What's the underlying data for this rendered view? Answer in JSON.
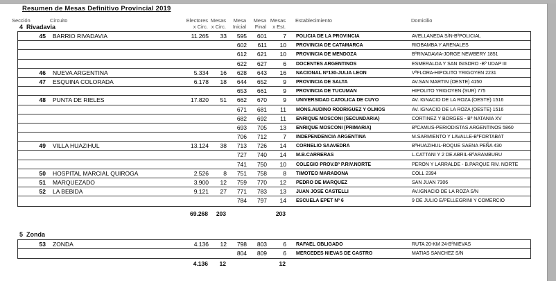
{
  "report": {
    "title": "Resumen de Mesas Definitivo Provincial 2019"
  },
  "columns": {
    "seccion": "Sección",
    "circuito": "Circuito",
    "electores_l1": "Electores",
    "electores_l2": "x Circ.",
    "mesas_l1": "Mesas",
    "mesas_l2": "x Circ.",
    "mesa_inicial_l1": "Mesa",
    "mesa_inicial_l2": "Inicial",
    "mesa_final_l1": "Mesa",
    "mesa_final_l2": "Final",
    "mesas_est_l1": "Mesas",
    "mesas_est_l2": "x Est.",
    "establecimiento": "Establecimiento",
    "domicilio": "Domicilio"
  },
  "colors": {
    "page_bg": "#ffffff",
    "frame_gray": "#b5b5b5",
    "header_text": "#454545",
    "row_border": "#333333",
    "text": "#000000"
  },
  "sections": [
    {
      "number": "4",
      "name": "Rivadavia",
      "rows": [
        {
          "nro": "45",
          "circuito": "BARRIO RIVADAVIA",
          "electores": "11.265",
          "mesas": "33",
          "ini": "595",
          "fin": "601",
          "est": "7",
          "estab": "POLICIA DE LA PROVINCIA",
          "dom": "AVELLANEDA S/N-BºPOLICIAL"
        },
        {
          "nro": "",
          "circuito": "",
          "electores": "",
          "mesas": "",
          "ini": "602",
          "fin": "611",
          "est": "10",
          "estab": "PROVINCIA DE CATAMARCA",
          "dom": "RIOBAMBA Y ARENALES"
        },
        {
          "nro": "",
          "circuito": "",
          "electores": "",
          "mesas": "",
          "ini": "612",
          "fin": "621",
          "est": "10",
          "estab": "PROVINCIA DE MENDOZA",
          "dom": "BºRIVADAVIA-JORGE NEWBERY 1851"
        },
        {
          "nro": "",
          "circuito": "",
          "electores": "",
          "mesas": "",
          "ini": "622",
          "fin": "627",
          "est": "6",
          "estab": "DOCENTES ARGENTINOS",
          "dom": "ESMERALDA Y SAN ISISDRO -Bº UDAP III"
        },
        {
          "nro": "46",
          "circuito": "NUEVA ARGENTINA",
          "electores": "5.334",
          "mesas": "16",
          "ini": "628",
          "fin": "643",
          "est": "16",
          "estab": "NACIONAL Nº130-JULIA LEON",
          "dom": "VºFLORA-HIPOLITO YRIGOYEN 2231"
        },
        {
          "nro": "47",
          "circuito": "ESQUINA COLORADA",
          "electores": "6.178",
          "mesas": "18",
          "ini": "644",
          "fin": "652",
          "est": "9",
          "estab": "PROVINCIA DE SALTA",
          "dom": "AV.SAN MARTIN (OESTE) 4150"
        },
        {
          "nro": "",
          "circuito": "",
          "electores": "",
          "mesas": "",
          "ini": "653",
          "fin": "661",
          "est": "9",
          "estab": "PROVINCIA DE TUCUMAN",
          "dom": "HIPOLITO YRIGOYEN (SUR) 775"
        },
        {
          "nro": "48",
          "circuito": "PUNTA DE RIELES",
          "electores": "17.820",
          "mesas": "51",
          "ini": "662",
          "fin": "670",
          "est": "9",
          "estab": "UNIVERSIDAD CATOLICA DE CUYO",
          "dom": "AV. IGNACIO DE LA ROZA (OESTE) 1516"
        },
        {
          "nro": "",
          "circuito": "",
          "electores": "",
          "mesas": "",
          "ini": "671",
          "fin": "681",
          "est": "11",
          "estab": "MONS.AUDINO RODRIGUEZ Y OLMOS",
          "dom": "AV. IGNACIO DE LA ROZA (OESTE) 1516"
        },
        {
          "nro": "",
          "circuito": "",
          "electores": "",
          "mesas": "",
          "ini": "682",
          "fin": "692",
          "est": "11",
          "estab": "ENRIQUE MOSCONI (SECUNDARIA)",
          "dom": "CORTINEZ Y BORGES - Bº NATANIA XV"
        },
        {
          "nro": "",
          "circuito": "",
          "electores": "",
          "mesas": "",
          "ini": "693",
          "fin": "705",
          "est": "13",
          "estab": "ENRIQUE MOSCONI (PRIMARIA)",
          "dom": "BºCAMUS-PERIODISTAS ARGENTINOS 5860"
        },
        {
          "nro": "",
          "circuito": "",
          "electores": "",
          "mesas": "",
          "ini": "706",
          "fin": "712",
          "est": "7",
          "estab": "INDEPENDENCIA ARGENTINA",
          "dom": "M.SARMIENTO Y LAVALLE-BºFORTABAT"
        },
        {
          "nro": "49",
          "circuito": "VILLA HUAZIHUL",
          "electores": "13.124",
          "mesas": "38",
          "ini": "713",
          "fin": "726",
          "est": "14",
          "estab": "CORNELIO SAAVEDRA",
          "dom": "BºHUAZIHUL-ROQUE SAENA PEÑA 430"
        },
        {
          "nro": "",
          "circuito": "",
          "electores": "",
          "mesas": "",
          "ini": "727",
          "fin": "740",
          "est": "14",
          "estab": "M.B.CARRERAS",
          "dom": "L.CATTANI Y 2 DE ABRIL-BºARAMBURU"
        },
        {
          "nro": "",
          "circuito": "",
          "electores": "",
          "mesas": "",
          "ini": "741",
          "fin": "750",
          "est": "10",
          "estab": "COLEGIO PROV.Bº P.RIV.NORTE",
          "dom": "PERON Y LARRALDE - B.PARQUE RIV. NORTE"
        },
        {
          "nro": "50",
          "circuito": "HOSPITAL MARCIAL QUIROGA",
          "electores": "2.526",
          "mesas": "8",
          "ini": "751",
          "fin": "758",
          "est": "8",
          "estab": "TIMOTEO MARADONA",
          "dom": "COLL 2394"
        },
        {
          "nro": "51",
          "circuito": "MARQUEZADO",
          "electores": "3.900",
          "mesas": "12",
          "ini": "759",
          "fin": "770",
          "est": "12",
          "estab": "PEDRO DE MARQUEZ",
          "dom": "SAN JUAN 7306"
        },
        {
          "nro": "52",
          "circuito": "LA BEBIDA",
          "electores": "9.121",
          "mesas": "27",
          "ini": "771",
          "fin": "783",
          "est": "13",
          "estab": "JUAN JOSE CASTELLI",
          "dom": "AV.IGNACIO DE LA ROZA S/N"
        },
        {
          "nro": "",
          "circuito": "",
          "electores": "",
          "mesas": "",
          "ini": "784",
          "fin": "797",
          "est": "14",
          "estab": "ESCUELA EPET Nº 6",
          "dom": "9 DE JULIO E/PELLEGRINI Y COMERCIO"
        }
      ],
      "totals": {
        "electores": "69.268",
        "mesas": "203",
        "mesas_est": "203"
      }
    },
    {
      "number": "5",
      "name": "Zonda",
      "rows": [
        {
          "nro": "53",
          "circuito": "ZONDA",
          "electores": "4.136",
          "mesas": "12",
          "ini": "798",
          "fin": "803",
          "est": "6",
          "estab": "RAFAEL OBLIGADO",
          "dom": "RUTA 20-KM 24-BºNIEVAS"
        },
        {
          "nro": "",
          "circuito": "",
          "electores": "",
          "mesas": "",
          "ini": "804",
          "fin": "809",
          "est": "6",
          "estab": "MERCEDES NIEVAS DE CASTRO",
          "dom": "MATIAS SANCHEZ S/N"
        }
      ],
      "totals": {
        "electores": "4.136",
        "mesas": "12",
        "mesas_est": "12"
      }
    }
  ]
}
